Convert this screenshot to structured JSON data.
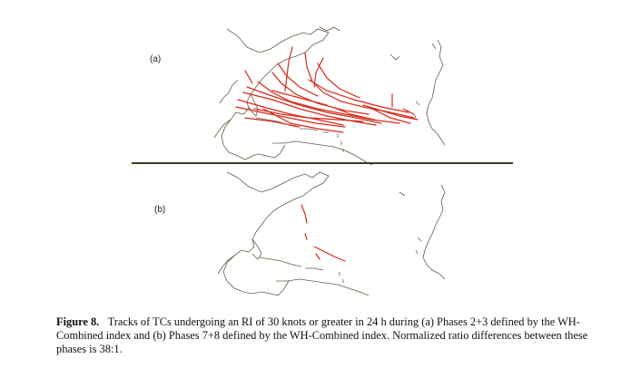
{
  "panels": [
    {
      "label": "(a)"
    },
    {
      "label": "(b)"
    }
  ],
  "caption": {
    "figure_label": "Figure 8.",
    "text": "Tracks of TCs undergoing an RI of 30 knots or greater in 24 h during (a) Phases 2+3 defined by the WH-Combined index and (b) Phases 7+8 defined by the WH-Combined index. Normalized ratio differences between these phases is 38:1."
  },
  "colors": {
    "track": "#d42a1a",
    "coast": "#6b5a45",
    "divider": "#3b3b20"
  }
}
